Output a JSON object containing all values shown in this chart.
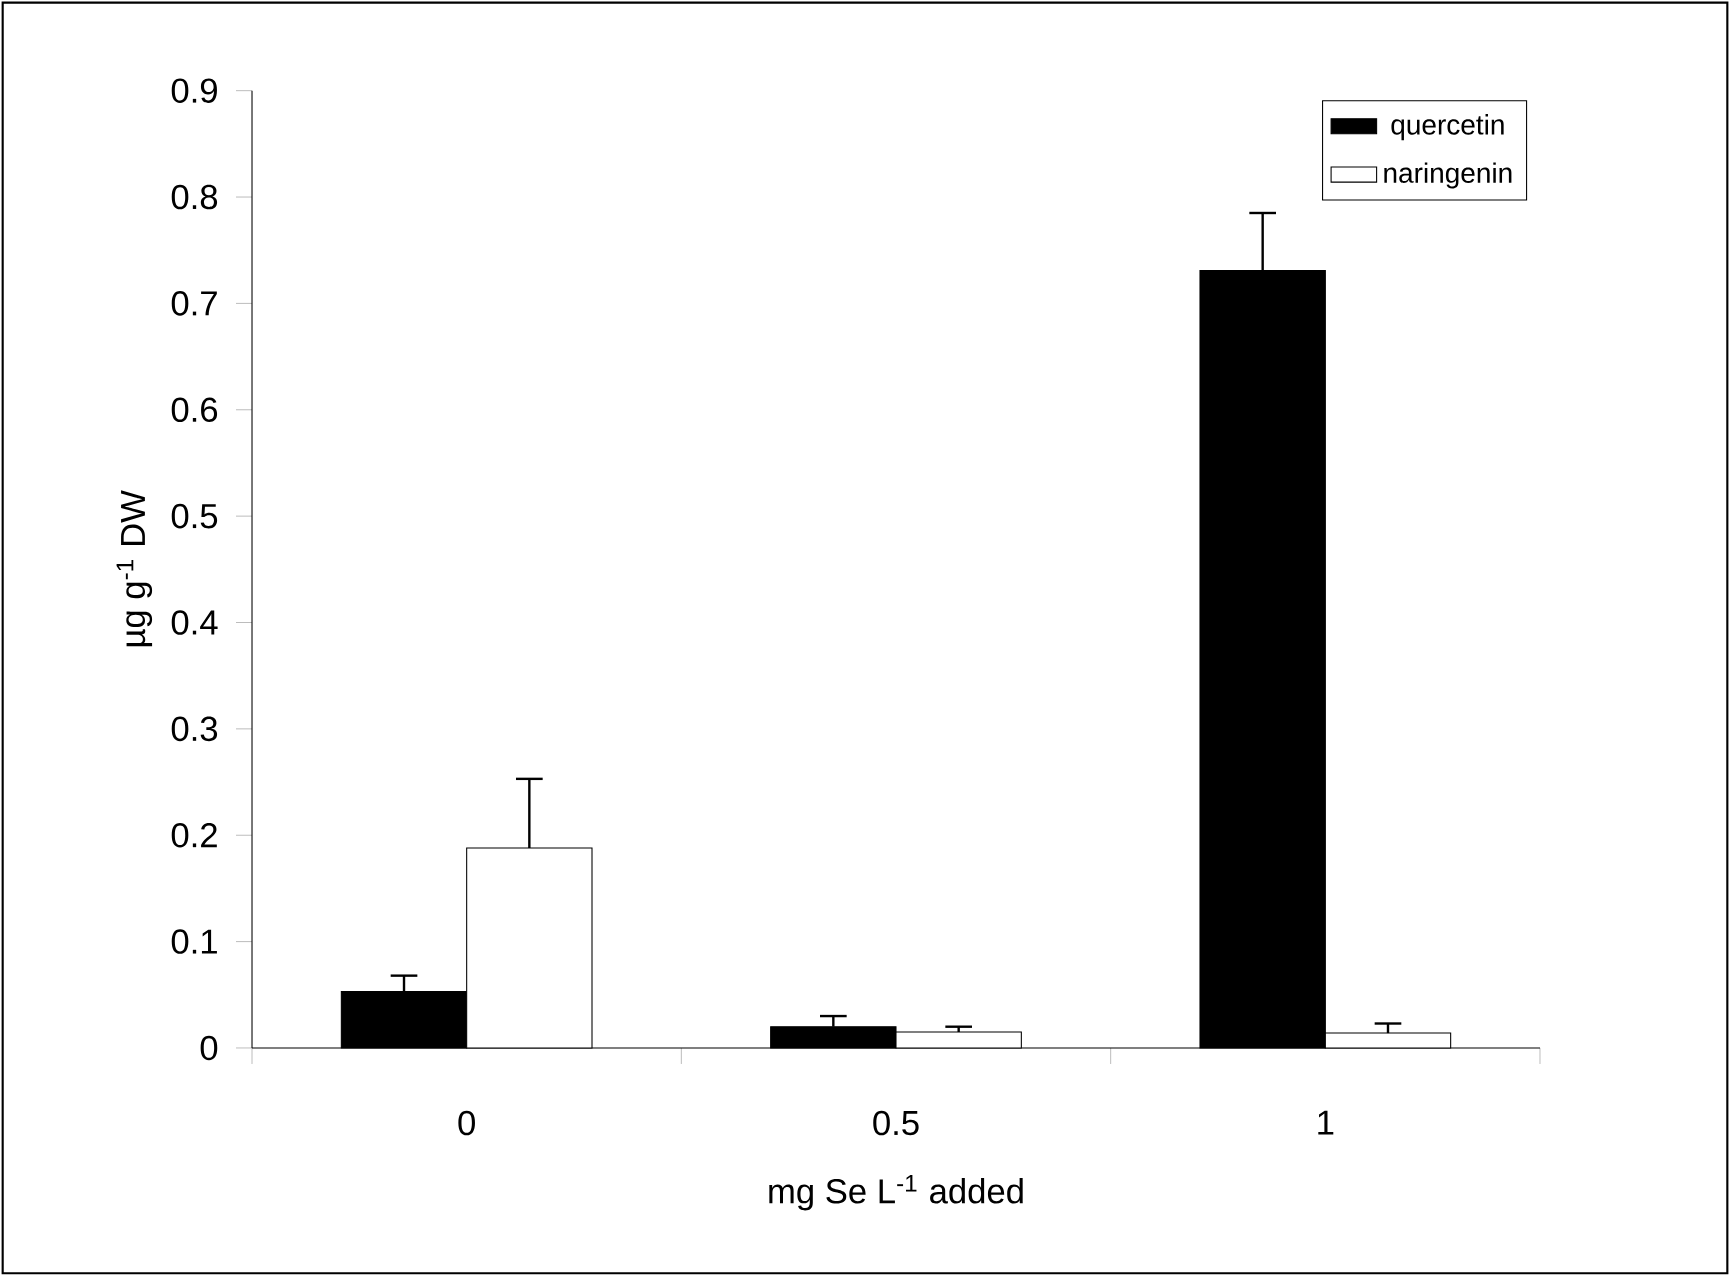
{
  "chart_data": {
    "type": "bar",
    "xlabel": "mg Se L$^{-1}$ added",
    "ylabel": "µg g$^{-1}$ DW",
    "categories": [
      "0",
      "0.5",
      "1"
    ],
    "series": [
      {
        "name": "quercetin",
        "color": "#000000",
        "values": [
          0.053,
          0.02,
          0.731
        ],
        "errors": [
          0.015,
          0.01,
          0.054
        ]
      },
      {
        "name": "naringenin",
        "color": "#ffffff",
        "values": [
          0.188,
          0.015,
          0.014
        ],
        "errors": [
          0.065,
          0.005,
          0.009
        ]
      }
    ],
    "ylim": [
      0,
      0.9
    ],
    "yticks": [
      0,
      0.1,
      0.2,
      0.3,
      0.4,
      0.5,
      0.6,
      0.7,
      0.8,
      0.9
    ],
    "grid": false,
    "legend": "top right"
  }
}
